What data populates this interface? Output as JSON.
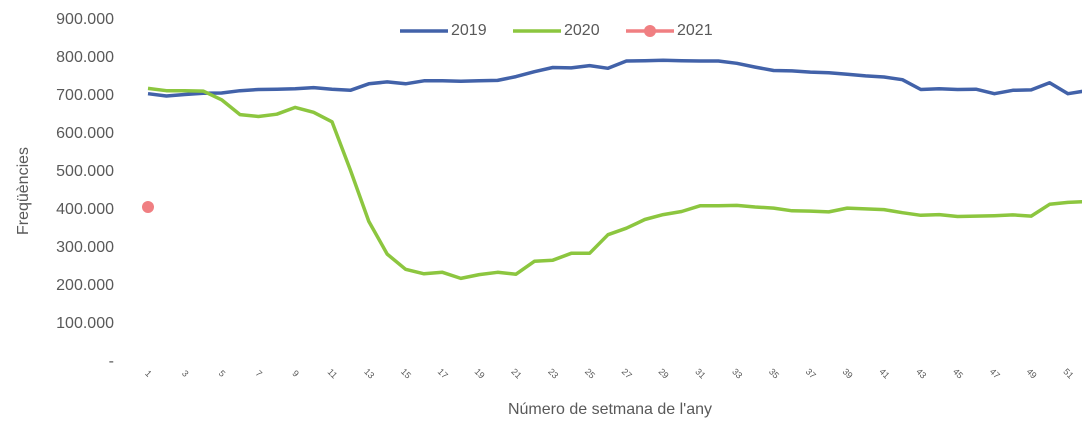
{
  "chart_data": {
    "type": "line",
    "y_label": "Freqüències",
    "x_label": "Número de setmana de l'any",
    "categories": [
      "1",
      null,
      "3",
      null,
      "5",
      null,
      "7",
      null,
      "9",
      null,
      "11",
      null,
      "13",
      null,
      "15",
      null,
      "17",
      null,
      "19",
      null,
      "21",
      null,
      "23",
      null,
      "25",
      null,
      "27",
      null,
      "29",
      null,
      "31",
      null,
      "33",
      null,
      "35",
      null,
      "37",
      null,
      "39",
      null,
      "41",
      null,
      "43",
      null,
      "45",
      null,
      "47",
      null,
      "49",
      null,
      "51",
      null
    ],
    "series": [
      {
        "name": "2019",
        "color": "#4262a9",
        "values": [
          706000,
          700000,
          704000,
          707000,
          708000,
          714000,
          717000,
          718000,
          719000,
          722000,
          718000,
          715000,
          732000,
          737000,
          732000,
          740000,
          740000,
          739000,
          740000,
          741000,
          751000,
          764000,
          775000,
          774000,
          780000,
          773000,
          792000,
          793000,
          794000,
          793000,
          792000,
          792000,
          786000,
          776000,
          767000,
          766000,
          763000,
          761000,
          757000,
          753000,
          750000,
          743000,
          717000,
          719000,
          717000,
          718000,
          706000,
          715000,
          716000,
          735000,
          706000,
          714000
        ]
      },
      {
        "name": "2020",
        "color": "#8cc63f",
        "values": [
          720000,
          714000,
          714000,
          713000,
          690000,
          651000,
          646000,
          652000,
          670000,
          657000,
          632000,
          505000,
          370000,
          284000,
          244000,
          232000,
          236000,
          220000,
          230000,
          236000,
          231000,
          265000,
          268000,
          286000,
          286000,
          335000,
          352000,
          375000,
          388000,
          396000,
          411000,
          411000,
          412000,
          408000,
          405000,
          398000,
          397000,
          395000,
          405000,
          403000,
          401000,
          393000,
          386000,
          388000,
          383000,
          384000,
          385000,
          387000,
          384000,
          415000,
          420000,
          422000
        ]
      },
      {
        "name": "2021",
        "color": "#f07f82",
        "values": [
          408000,
          null,
          null,
          null,
          null,
          null,
          null,
          null,
          null,
          null,
          null,
          null,
          null,
          null,
          null,
          null,
          null,
          null,
          null,
          null,
          null,
          null,
          null,
          null,
          null,
          null,
          null,
          null,
          null,
          null,
          null,
          null,
          null,
          null,
          null,
          null,
          null,
          null,
          null,
          null,
          null,
          null,
          null,
          null,
          null,
          null,
          null,
          null,
          null,
          null,
          null,
          null
        ]
      }
    ],
    "ylim": [
      0,
      900000
    ],
    "yticks": [
      {
        "value": 0,
        "label": "-"
      },
      {
        "value": 100000,
        "label": "100.000"
      },
      {
        "value": 200000,
        "label": "200.000"
      },
      {
        "value": 300000,
        "label": "300.000"
      },
      {
        "value": 400000,
        "label": "400.000"
      },
      {
        "value": 500000,
        "label": "500.000"
      },
      {
        "value": 600000,
        "label": "600.000"
      },
      {
        "value": 700000,
        "label": "700.000"
      },
      {
        "value": 800000,
        "label": "800.000"
      },
      {
        "value": 900000,
        "label": "900.000"
      }
    ],
    "legend": "top"
  }
}
